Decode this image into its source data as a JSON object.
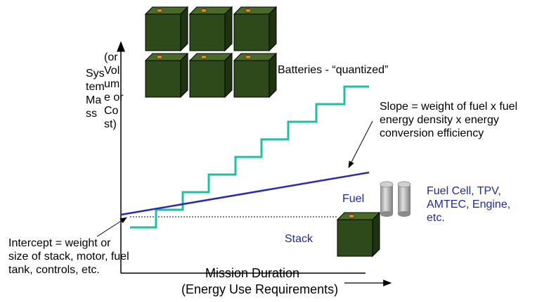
{
  "y_axis_label": "System Mass",
  "y_axis_label_alt": "(or Volume or Cost)",
  "batteries_label": "Batteries - “quantized”",
  "slope_note": "Slope = weight of fuel x fuel energy density x energy conversion efficiency",
  "fuel_label": "Fuel",
  "stack_label": "Stack",
  "converters_label": "Fuel Cell, TPV, AMTEC, Engine, etc.",
  "intercept_note": "Intercept = weight or size of stack, motor, fuel tank, controls, etc.",
  "x_axis_label": "Mission Duration",
  "x_axis_sublabel": "(Energy Use Requirements)"
}
